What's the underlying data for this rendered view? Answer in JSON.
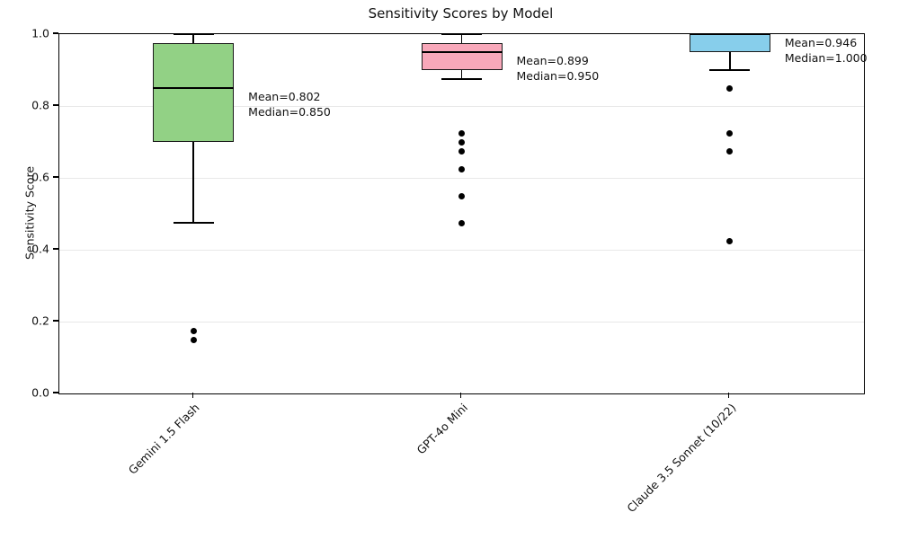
{
  "chart_data": {
    "type": "boxplot",
    "title": "Sensitivity Scores by Model",
    "xlabel": "",
    "ylabel": "Sensitivity Score",
    "ylim": [
      0.0,
      1.0
    ],
    "yticks": [
      0.0,
      0.2,
      0.4,
      0.6,
      0.8,
      1.0
    ],
    "grid": "horizontal",
    "grid_color": "#e8e8e8",
    "categories": [
      "Gemini 1.5 Flash",
      "GPT-4o Mini",
      "Claude 3.5 Sonnet (10/22)"
    ],
    "series": [
      {
        "name": "Gemini 1.5 Flash",
        "color": "#92d185",
        "whisker_low": 0.475,
        "q1": 0.7,
        "median": 0.85,
        "q3": 0.975,
        "whisker_high": 1.0,
        "outliers": [
          0.175,
          0.15
        ],
        "mean": 0.802,
        "annotation": [
          "Mean=0.802",
          "Median=0.850"
        ]
      },
      {
        "name": "GPT-4o Mini",
        "color": "#f8a8ba",
        "whisker_low": 0.875,
        "q1": 0.9,
        "median": 0.95,
        "q3": 0.975,
        "whisker_high": 1.0,
        "outliers": [
          0.725,
          0.7,
          0.675,
          0.625,
          0.55,
          0.475
        ],
        "mean": 0.899,
        "annotation": [
          "Mean=0.899",
          "Median=0.950"
        ]
      },
      {
        "name": "Claude 3.5 Sonnet (10/22)",
        "color": "#87ceeb",
        "whisker_low": 0.9,
        "q1": 0.95,
        "median": 1.0,
        "q3": 1.0,
        "whisker_high": 1.0,
        "outliers": [
          0.85,
          0.725,
          0.675,
          0.425
        ],
        "mean": 0.946,
        "annotation": [
          "Mean=0.946",
          "Median=1.000"
        ]
      }
    ]
  }
}
